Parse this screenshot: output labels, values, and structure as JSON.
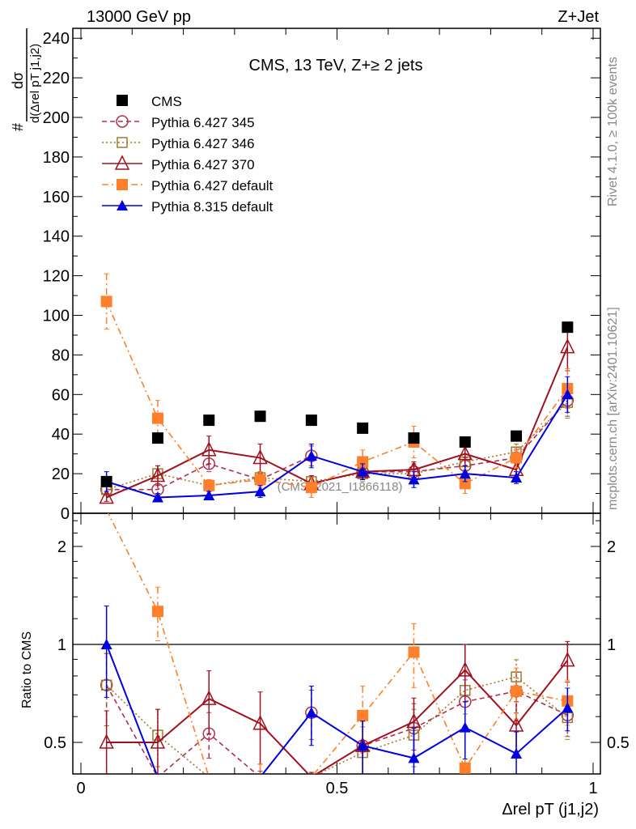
{
  "header": {
    "left": "13000 GeV pp",
    "right": "Z+Jet"
  },
  "side": {
    "rivet": "Rivet 4.1.0, ≥ 100k events",
    "mcplots": "mcplots.cern.ch [arXiv:2401.10621]"
  },
  "chart_data": {
    "type": "line",
    "title": "CMS, 13 TeV, Z+≥ 2 jets",
    "watermark": "(CMS_2021_I1866118)",
    "ylabel_top": "#",
    "ylabel_num": "dσ",
    "ylabel_den": "d(Δrel pT j1,j2)",
    "xlabel": "Δrel pT (j1,j2)",
    "ratio_ylabel": "Ratio to CMS",
    "x": [
      0.05,
      0.15,
      0.25,
      0.35,
      0.45,
      0.55,
      0.65,
      0.75,
      0.85,
      0.95
    ],
    "xlim": [
      0,
      1
    ],
    "ylim": [
      0,
      245
    ],
    "ratio_ylim": [
      0.4,
      2.5
    ],
    "xticks": [
      "0",
      "0.5",
      "1"
    ],
    "yticks": [
      "0",
      "20",
      "40",
      "60",
      "80",
      "100",
      "120",
      "140",
      "160",
      "180",
      "200",
      "220",
      "240"
    ],
    "ratio_yticks": [
      "0.5",
      "1",
      "2"
    ],
    "legend_position": "top-left",
    "series": [
      {
        "name": "CMS",
        "color": "#000000",
        "marker": "square-filled",
        "line": "none",
        "values": [
          16,
          38,
          47,
          49,
          47,
          43,
          38,
          36,
          39,
          94
        ]
      },
      {
        "name": "Pythia 6.427 345",
        "color": "#b03050",
        "marker": "circle-open",
        "line": "dashed",
        "values": [
          12,
          12,
          25,
          17,
          29,
          21,
          21,
          24,
          28,
          57
        ],
        "err": [
          3,
          3,
          4,
          3,
          5,
          4,
          4,
          4,
          4,
          8
        ]
      },
      {
        "name": "Pythia 6.427 346",
        "color": "#a07830",
        "marker": "square-open",
        "line": "dotted",
        "values": [
          12,
          20,
          14,
          18,
          16,
          20,
          20,
          26,
          31,
          56
        ],
        "err": [
          3,
          4,
          3,
          3,
          3,
          4,
          4,
          4,
          4,
          8
        ]
      },
      {
        "name": "Pythia 6.427 370",
        "color": "#a01020",
        "marker": "triangle-open",
        "line": "solid",
        "values": [
          8,
          19,
          32,
          28,
          15,
          21,
          22,
          30,
          22,
          84
        ],
        "err": [
          2,
          5,
          7,
          7,
          4,
          4,
          4,
          6,
          4,
          12
        ]
      },
      {
        "name": "Pythia 6.427 default",
        "color": "#ff7f2a",
        "marker": "square-filled",
        "line": "dashdot",
        "values": [
          107,
          48,
          14,
          17,
          13,
          26,
          36,
          15,
          28,
          63
        ],
        "err": [
          14,
          9,
          3,
          4,
          5,
          6,
          8,
          5,
          5,
          10
        ]
      },
      {
        "name": "Pythia 8.315 default",
        "color": "#0000e0",
        "marker": "triangle-filled",
        "line": "solid",
        "values": [
          16,
          8,
          9,
          11,
          29,
          21,
          17,
          20,
          18,
          60
        ],
        "err": [
          5,
          2,
          2,
          3,
          6,
          4,
          4,
          4,
          3,
          9
        ]
      }
    ]
  }
}
